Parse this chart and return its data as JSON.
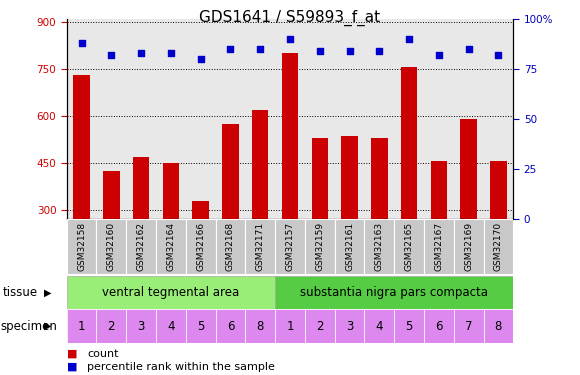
{
  "title": "GDS1641 / S59893_f_at",
  "samples": [
    "GSM32158",
    "GSM32160",
    "GSM32162",
    "GSM32164",
    "GSM32166",
    "GSM32168",
    "GSM32171",
    "GSM32157",
    "GSM32159",
    "GSM32161",
    "GSM32163",
    "GSM32165",
    "GSM32167",
    "GSM32169",
    "GSM32170"
  ],
  "counts": [
    730,
    425,
    470,
    450,
    330,
    575,
    620,
    800,
    530,
    535,
    530,
    755,
    455,
    590,
    455
  ],
  "percentiles": [
    88,
    82,
    83,
    83,
    80,
    85,
    85,
    90,
    84,
    84,
    84,
    90,
    82,
    85,
    82
  ],
  "ylim_left": [
    270,
    910
  ],
  "ylim_right": [
    0,
    100
  ],
  "yticks_left": [
    300,
    450,
    600,
    750,
    900
  ],
  "yticks_right": [
    0,
    25,
    50,
    75,
    100
  ],
  "bar_color": "#cc0000",
  "dot_color": "#0000cc",
  "grid_color": "#000000",
  "plot_bg": "#e8e8e8",
  "tissue_labels": [
    "ventral tegmental area",
    "substantia nigra pars compacta"
  ],
  "tissue_color1": "#99ee77",
  "tissue_color2": "#55cc44",
  "specimen_labels": [
    "1",
    "2",
    "3",
    "4",
    "5",
    "6",
    "8",
    "1",
    "2",
    "3",
    "4",
    "5",
    "6",
    "7",
    "8"
  ],
  "specimen_color": "#dd88ee",
  "sample_box_color": "#c8c8c8",
  "n_group1": 7,
  "n_group2": 8,
  "left_label_color": "#cc0000",
  "right_label_color": "#0000bb",
  "title_fontsize": 11,
  "tick_fontsize": 7.5,
  "label_fontsize": 8.5,
  "sample_fontsize": 6.5,
  "annotation_fontsize": 8
}
